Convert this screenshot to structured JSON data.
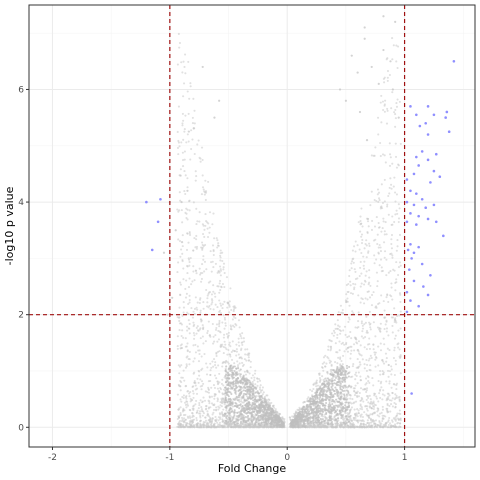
{
  "chart_data": {
    "type": "scatter",
    "title": "",
    "xlabel": "Fold Change",
    "ylabel": "-log10 p value",
    "xlim": [
      -2.2,
      1.6
    ],
    "ylim": [
      -0.35,
      7.5
    ],
    "x_ticks": [
      -2,
      -1,
      0,
      1
    ],
    "y_ticks": [
      0,
      2,
      4,
      6
    ],
    "x_tick_labels": [
      "-2",
      "-1",
      "0",
      "1"
    ],
    "y_tick_labels": [
      "0",
      "2",
      "4",
      "6"
    ],
    "grid": true,
    "thresholds": {
      "fold_change": [
        -1,
        1
      ],
      "neg_log10_p": 2
    },
    "colors": {
      "background_points": "#c8c8c8",
      "significant_points": "#7b7bff",
      "threshold_lines": "#a01010",
      "panel_border": "#333333",
      "grid": "#ebebeb"
    },
    "series": [
      {
        "role": "not-significant",
        "points": [
          [
            -0.58,
            5.8
          ],
          [
            -0.62,
            5.5
          ],
          [
            -0.72,
            6.4
          ],
          [
            -0.85,
            4.2
          ],
          [
            -0.9,
            4.0
          ],
          [
            -0.95,
            3.5
          ],
          [
            -1.0,
            4.0
          ],
          [
            -1.05,
            3.1
          ],
          [
            -1.02,
            2.0
          ],
          [
            -0.98,
            2.3
          ],
          [
            0.45,
            6.0
          ],
          [
            0.5,
            5.8
          ],
          [
            0.62,
            5.6
          ],
          [
            0.68,
            5.1
          ],
          [
            0.6,
            6.3
          ],
          [
            0.66,
            6.9
          ],
          [
            0.72,
            6.4
          ],
          [
            0.82,
            6.7
          ],
          [
            0.88,
            6.5
          ],
          [
            0.92,
            7.2
          ],
          [
            0.82,
            7.3
          ],
          [
            0.66,
            7.1
          ],
          [
            0.55,
            6.6
          ],
          [
            0.78,
            6.1
          ],
          [
            0.9,
            6.0
          ],
          [
            0.95,
            5.5
          ]
        ]
      },
      {
        "role": "significant",
        "points": [
          [
            -1.2,
            4.0
          ],
          [
            -1.08,
            4.05
          ],
          [
            -1.1,
            3.65
          ],
          [
            -1.15,
            3.15
          ],
          [
            1.42,
            6.5
          ],
          [
            1.05,
            5.7
          ],
          [
            1.1,
            5.55
          ],
          [
            1.2,
            5.7
          ],
          [
            1.25,
            5.55
          ],
          [
            1.36,
            5.6
          ],
          [
            1.35,
            5.5
          ],
          [
            1.18,
            5.4
          ],
          [
            1.13,
            5.35
          ],
          [
            1.2,
            5.2
          ],
          [
            1.38,
            5.25
          ],
          [
            1.15,
            4.9
          ],
          [
            1.27,
            4.85
          ],
          [
            1.1,
            4.8
          ],
          [
            1.2,
            4.75
          ],
          [
            1.12,
            4.65
          ],
          [
            1.02,
            4.4
          ],
          [
            1.08,
            4.5
          ],
          [
            1.25,
            4.55
          ],
          [
            1.3,
            4.45
          ],
          [
            1.22,
            4.35
          ],
          [
            1.05,
            4.2
          ],
          [
            1.1,
            4.15
          ],
          [
            1.15,
            4.05
          ],
          [
            1.02,
            4.0
          ],
          [
            1.08,
            3.95
          ],
          [
            1.18,
            3.9
          ],
          [
            1.25,
            3.95
          ],
          [
            1.05,
            3.8
          ],
          [
            1.12,
            3.75
          ],
          [
            1.2,
            3.7
          ],
          [
            1.02,
            3.65
          ],
          [
            1.1,
            3.6
          ],
          [
            1.27,
            3.65
          ],
          [
            1.33,
            3.4
          ],
          [
            1.05,
            3.25
          ],
          [
            1.12,
            3.2
          ],
          [
            1.03,
            3.15
          ],
          [
            1.08,
            3.1
          ],
          [
            1.06,
            3.0
          ],
          [
            1.15,
            2.9
          ],
          [
            1.04,
            2.8
          ],
          [
            1.22,
            2.7
          ],
          [
            1.08,
            2.6
          ],
          [
            1.16,
            2.5
          ],
          [
            1.02,
            2.4
          ],
          [
            1.2,
            2.35
          ],
          [
            1.05,
            2.25
          ],
          [
            1.12,
            2.15
          ],
          [
            1.02,
            2.05
          ],
          [
            1.06,
            0.6
          ]
        ]
      }
    ]
  }
}
